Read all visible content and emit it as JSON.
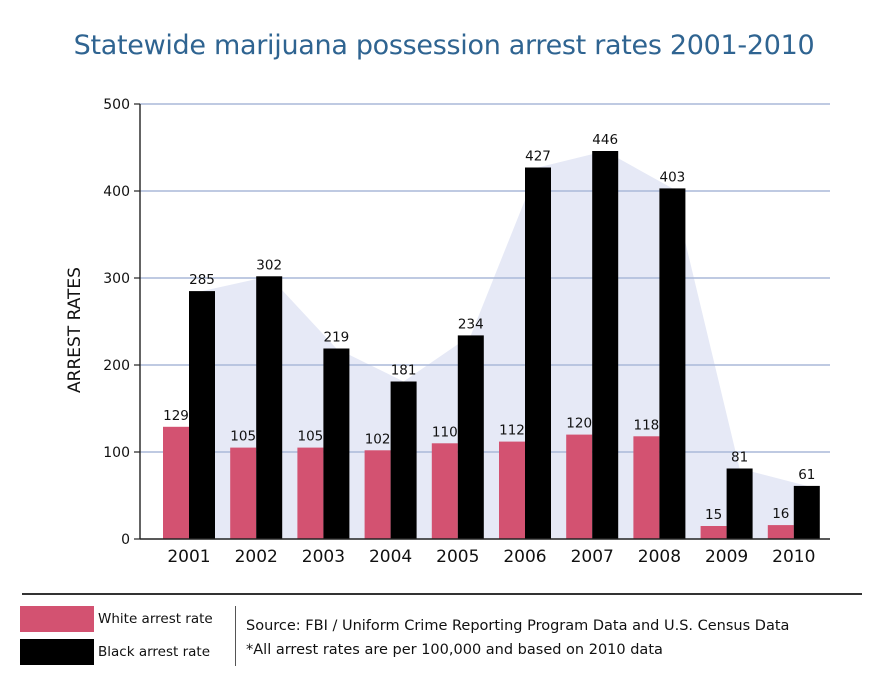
{
  "chart_data": {
    "type": "bar",
    "title": "Statewide marijuana possession arrest rates 2001-2010",
    "ylabel": "ARREST RATES",
    "xlabel": "",
    "categories": [
      "2001",
      "2002",
      "2003",
      "2004",
      "2005",
      "2006",
      "2007",
      "2008",
      "2009",
      "2010"
    ],
    "series": [
      {
        "name": "White arrest rate",
        "color": "#d35271",
        "values": [
          129,
          105,
          105,
          102,
          110,
          112,
          120,
          118,
          15,
          16
        ]
      },
      {
        "name": "Black arrest rate",
        "color": "#000000",
        "values": [
          285,
          302,
          219,
          181,
          234,
          427,
          446,
          403,
          81,
          61
        ]
      }
    ],
    "ylim": [
      0,
      500
    ],
    "yticks": [
      0,
      100,
      200,
      300,
      400,
      500
    ],
    "grid": true,
    "background_area_color": "#e6e9f6",
    "grid_color": "#aab9d9",
    "data_labels": true
  },
  "legend": {
    "items": [
      {
        "label": "White arrest rate",
        "color": "#d35271"
      },
      {
        "label": "Black arrest rate",
        "color": "#000000"
      }
    ]
  },
  "notes": {
    "source": "Source: FBI / Uniform Crime Reporting Program Data and U.S. Census Data",
    "footnote": "*All arrest rates are per 100,000 and based on 2010 data"
  }
}
